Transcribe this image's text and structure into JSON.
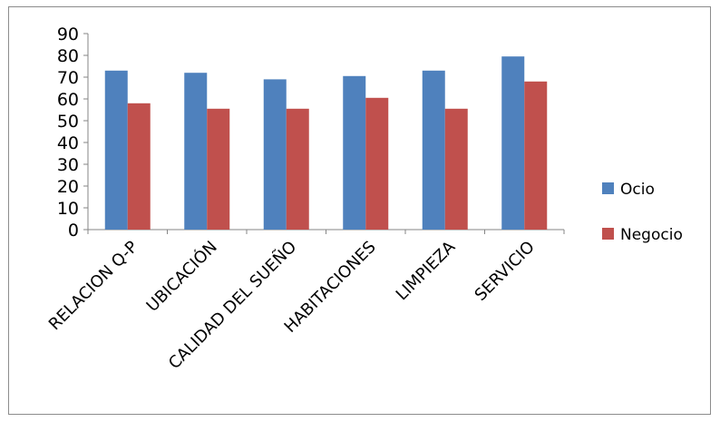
{
  "chart_data": {
    "type": "bar",
    "categories": [
      "RELACION Q-P",
      "UBICACIÓN",
      "CALIDAD DEL SUEÑO",
      "HABITACIONES",
      "LIMPIEZA",
      "SERVICIO"
    ],
    "series": [
      {
        "name": "Ocio",
        "color": "#4f81bd",
        "values": [
          73,
          72,
          69,
          70.5,
          73,
          79.5
        ]
      },
      {
        "name": "Negocio",
        "color": "#c0504d",
        "values": [
          58,
          55.5,
          55.5,
          60.5,
          55.5,
          68
        ]
      }
    ],
    "ylim": [
      0,
      90
    ],
    "yticks": [
      "0",
      "10",
      "20",
      "30",
      "40",
      "50",
      "60",
      "70",
      "80",
      "90"
    ],
    "grid": false,
    "legend_position": "right"
  }
}
